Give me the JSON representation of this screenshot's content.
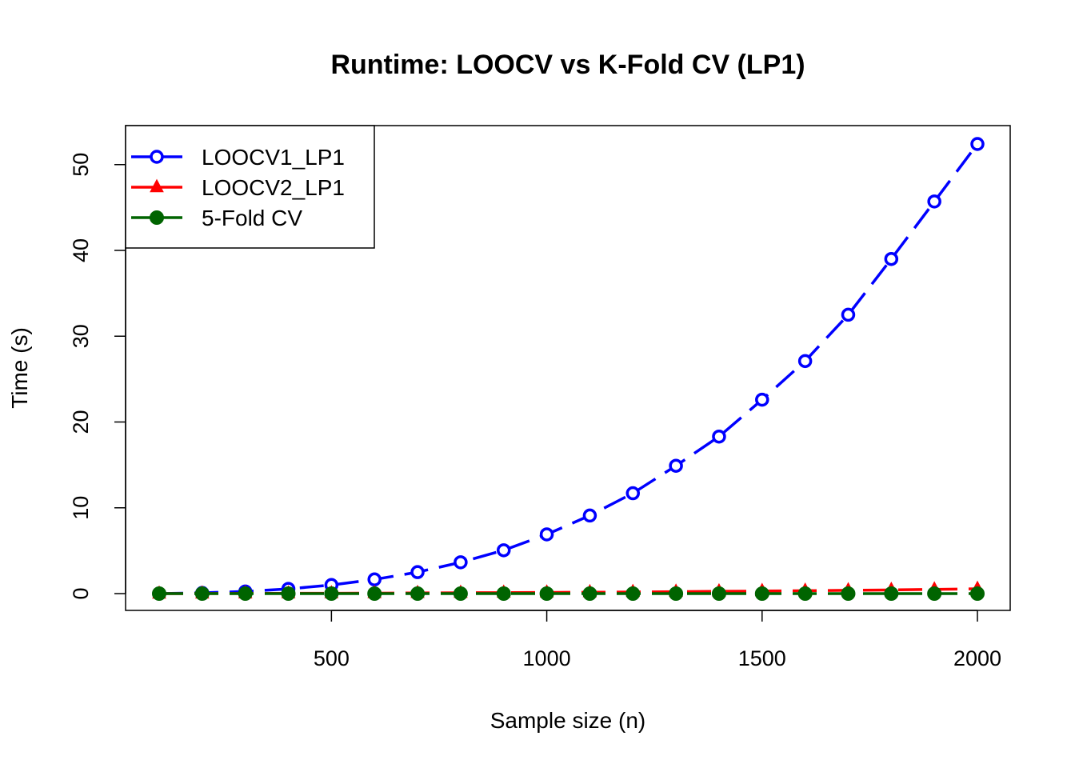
{
  "chart_data": {
    "type": "line",
    "title": "Runtime: LOOCV vs K-Fold CV (LP1)",
    "xlabel": "Sample size (n)",
    "ylabel": "Time (s)",
    "xlim": [
      100,
      2000
    ],
    "ylim": [
      0,
      52.4
    ],
    "x_ticks": [
      500,
      1000,
      1500,
      2000
    ],
    "y_ticks": [
      0,
      10,
      20,
      30,
      40,
      50
    ],
    "x_tick_labels": [
      "500",
      "1000",
      "1500",
      "2000"
    ],
    "y_tick_labels": [
      "0",
      "10",
      "20",
      "30",
      "40",
      "50"
    ],
    "legend_position": "top-left",
    "grid": false,
    "x": [
      100,
      200,
      300,
      400,
      500,
      600,
      700,
      800,
      900,
      1000,
      1100,
      1200,
      1300,
      1400,
      1500,
      1600,
      1700,
      1800,
      1900,
      2000
    ],
    "series": [
      {
        "name": "LOOCV1_LP1",
        "color": "#0000ff",
        "marker": "open-circle",
        "values": [
          0.0,
          0.08,
          0.25,
          0.55,
          1.0,
          1.65,
          2.5,
          3.65,
          5.05,
          6.9,
          9.1,
          11.7,
          14.9,
          18.3,
          22.6,
          27.1,
          32.5,
          39.0,
          45.7,
          52.4
        ]
      },
      {
        "name": "LOOCV2_LP1",
        "color": "#ff0000",
        "marker": "filled-triangle",
        "values": [
          0.0,
          0.01,
          0.02,
          0.03,
          0.04,
          0.05,
          0.07,
          0.09,
          0.11,
          0.13,
          0.16,
          0.19,
          0.22,
          0.26,
          0.3,
          0.34,
          0.38,
          0.43,
          0.49,
          0.56
        ]
      },
      {
        "name": "5-Fold CV",
        "color": "#006400",
        "marker": "filled-circle",
        "values": [
          0.0,
          0.0,
          0.0,
          0.0,
          0.0,
          0.0,
          0.0,
          0.0,
          0.0,
          0.0,
          0.0,
          0.0,
          0.0,
          0.0,
          0.0,
          0.0,
          0.0,
          0.0,
          0.0,
          0.0
        ]
      }
    ]
  }
}
